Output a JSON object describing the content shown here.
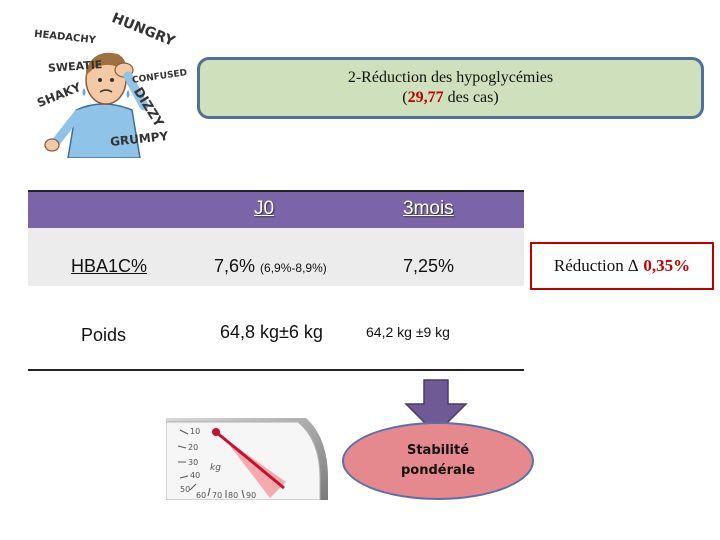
{
  "illustration": {
    "words": [
      "HEADACHY",
      "HUNGRY",
      "SWEATIE",
      "SHAKY",
      "CONFUSED",
      "DIZZY",
      "GRUMPY"
    ]
  },
  "title": {
    "line1": "2-Réduction des hypoglycémies",
    "open_paren": "(",
    "count": "29,77",
    "line2_suffix": " des cas)"
  },
  "table": {
    "columns": [
      "J0",
      "3mois"
    ],
    "rows": [
      {
        "label": "HBA1C%",
        "j0_main": "7,6%",
        "j0_range": "(6,9%-8,9%)",
        "m3": "7,25%"
      },
      {
        "label": "Poids",
        "j0_main": "64,8 kg±6 kg",
        "m3": "64,2 kg ±9 kg"
      }
    ]
  },
  "reduction": {
    "prefix": "Réduction ∆",
    "value": "0,35%"
  },
  "stability": {
    "line1": "Stabilité",
    "line2": "pondérale"
  },
  "scale": {
    "unit": "kg",
    "ticks": [
      "10",
      "20",
      "30",
      "40",
      "50",
      "60",
      "70",
      "80",
      "90"
    ]
  },
  "colors": {
    "table_header": "#7b64a8",
    "title_bg": "#cfe0bc",
    "title_border": "#4f6f9a",
    "accent_red": "#c00000",
    "arrow": "#6f5a96",
    "ellipse": "#e6898e"
  }
}
